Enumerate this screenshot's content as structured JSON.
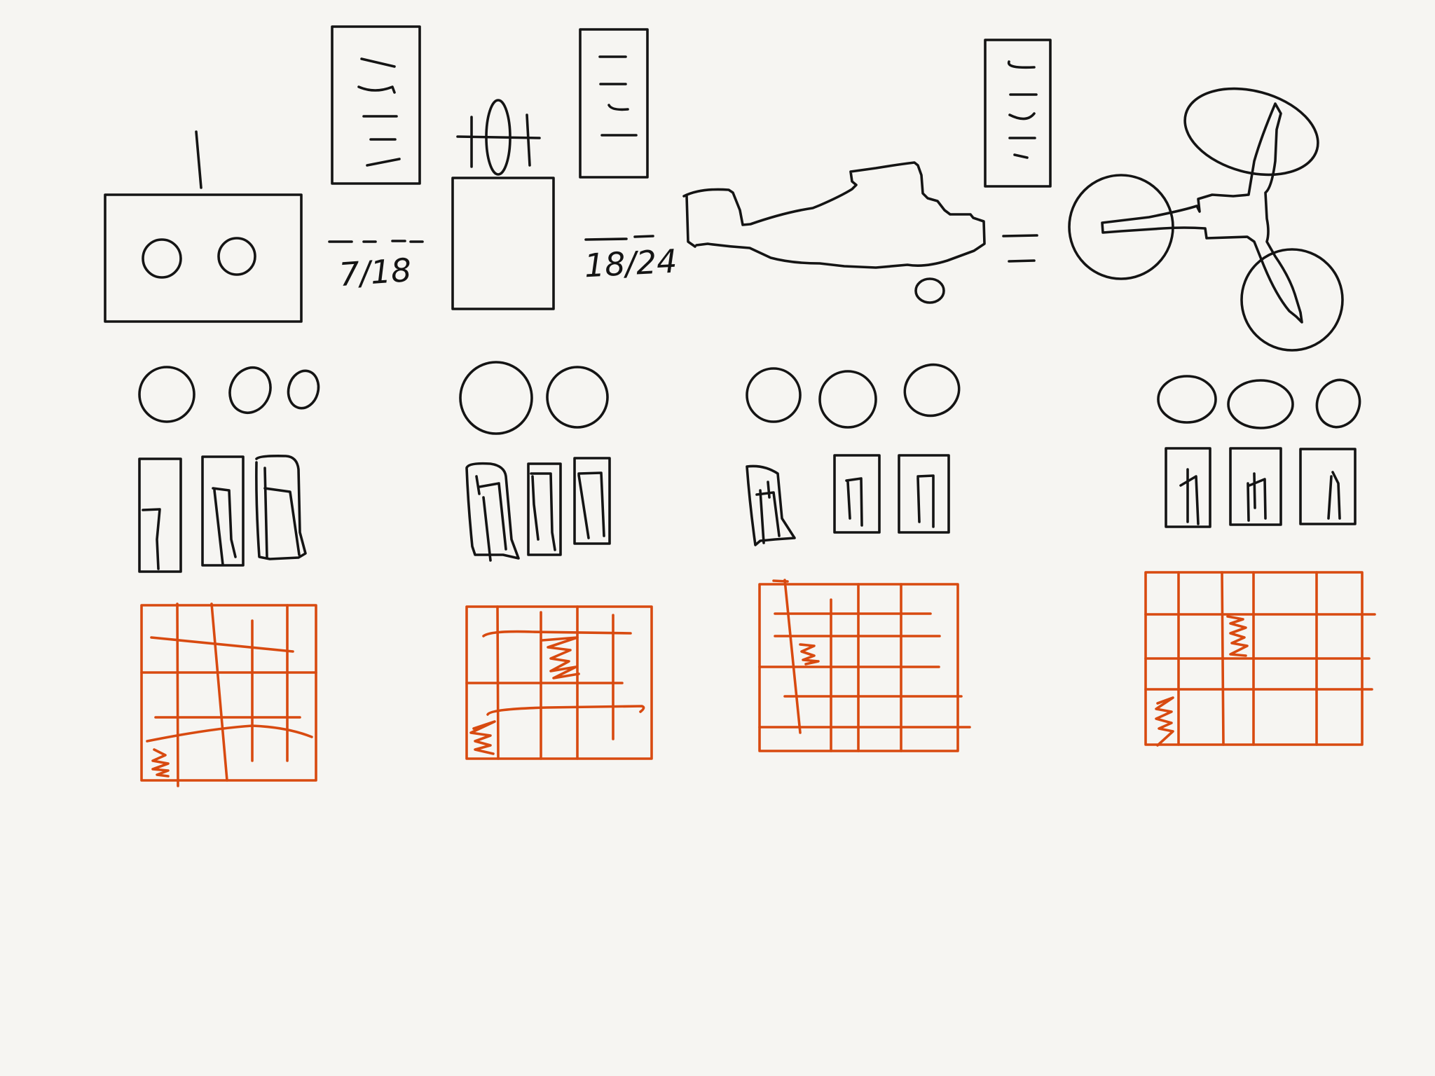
{
  "colors": {
    "ink": "#141414",
    "grid": "#d84a10",
    "paper": "#f6f5f2"
  },
  "sketch_labels": {
    "fraction_1": "7/18",
    "fraction_2": "18/24"
  }
}
